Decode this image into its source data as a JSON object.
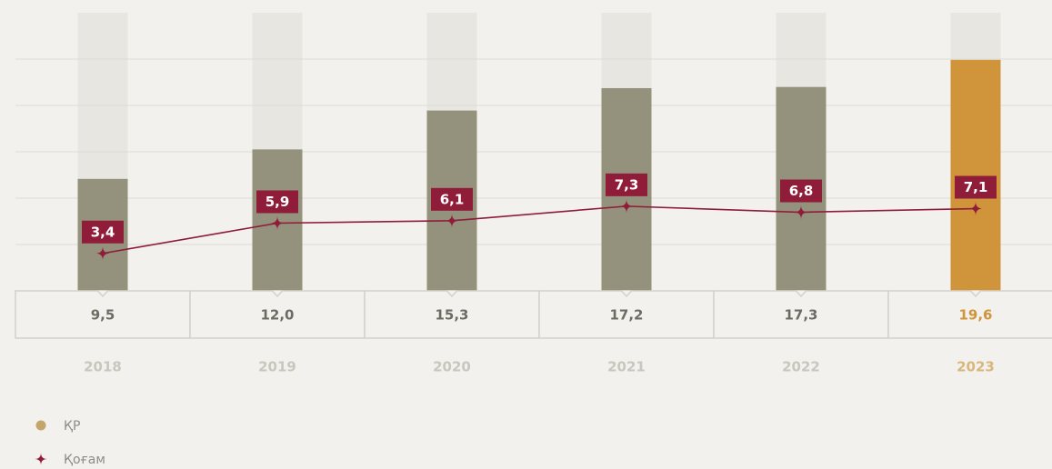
{
  "chart_data": {
    "type": "bar-line",
    "categories": [
      "2018",
      "2019",
      "2020",
      "2021",
      "2022",
      "2023"
    ],
    "series": [
      {
        "name": "ҚР",
        "color": "#c4a56a",
        "colors": [
          "#94917c",
          "#94917c",
          "#94917c",
          "#94917c",
          "#94917c",
          "#d0943a"
        ],
        "values": [
          9.5,
          12.0,
          15.3,
          17.2,
          17.3,
          19.6
        ],
        "value_labels": [
          "9,5",
          "12,0",
          "15,3",
          "17,2",
          "17,3",
          "19,6"
        ]
      },
      {
        "name": "Қоғам",
        "color": "#8f1d3a",
        "axis": "y2",
        "values": [
          3.4,
          5.9,
          6.1,
          7.3,
          6.8,
          7.1
        ],
        "value_labels": [
          "3,4",
          "5,9",
          "6,1",
          "7,3",
          "6,8",
          "7,1"
        ]
      }
    ],
    "ylim": [
      0,
      23.6
    ],
    "y2lim": [
      0.3,
      23.3
    ]
  }
}
